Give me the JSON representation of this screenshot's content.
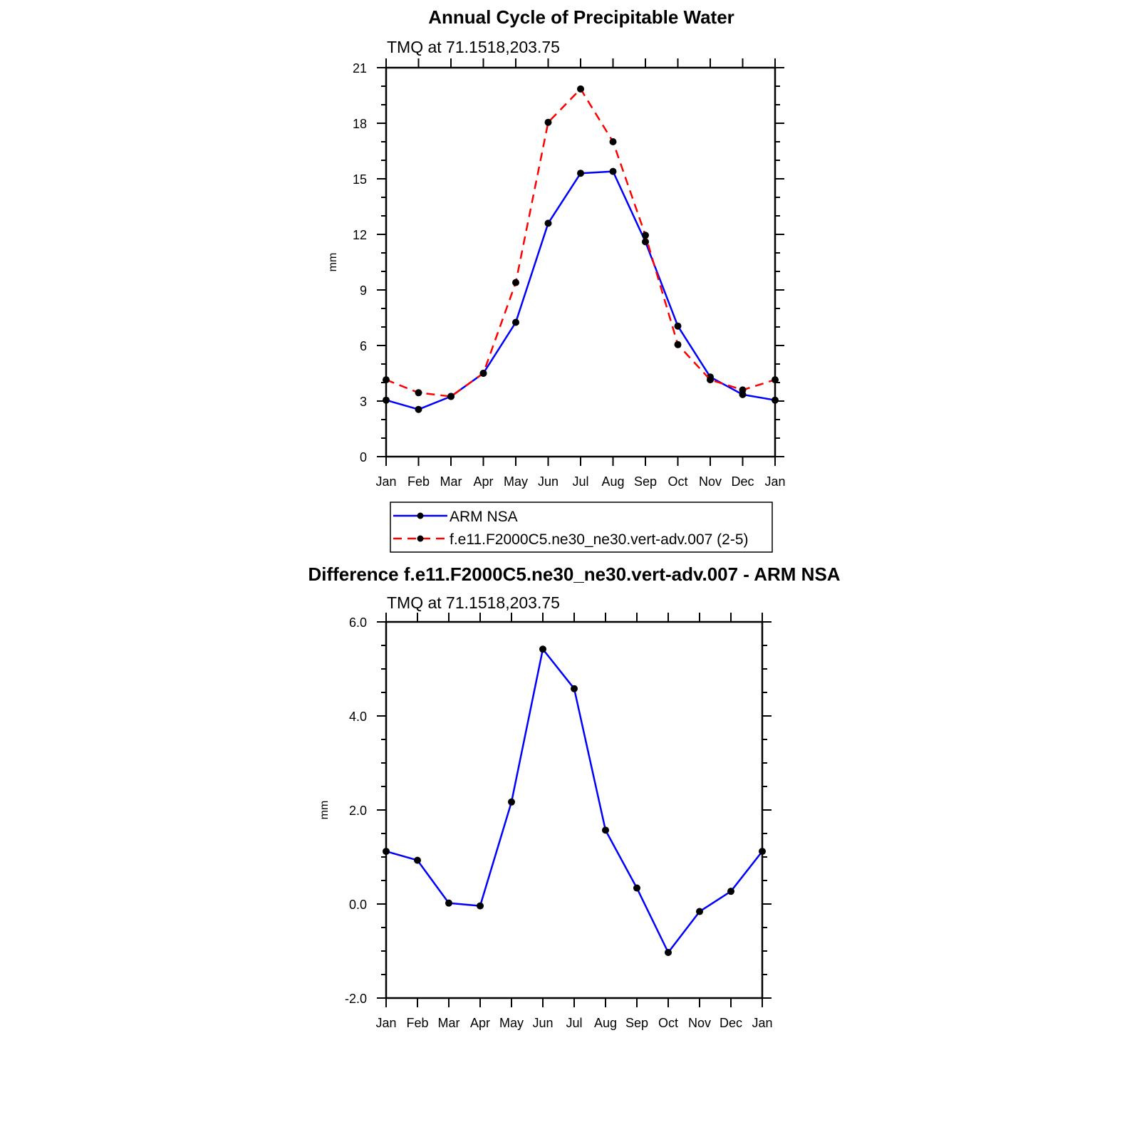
{
  "figure_title": "Annual Cycle of Precipitable Water",
  "chart_data": [
    {
      "type": "line",
      "title": "Annual Cycle of Precipitable Water",
      "subtitle": "TMQ at 71.1518,203.75",
      "xlabel": "",
      "ylabel": "mm",
      "categories": [
        "Jan",
        "Feb",
        "Mar",
        "Apr",
        "May",
        "Jun",
        "Jul",
        "Aug",
        "Sep",
        "Oct",
        "Nov",
        "Dec",
        "Jan"
      ],
      "ylim": [
        0,
        21
      ],
      "yticks": [
        "0",
        "3",
        "6",
        "9",
        "12",
        "15",
        "18",
        "21"
      ],
      "grid": false,
      "legend_position": "bottom",
      "series": [
        {
          "name": "ARM NSA",
          "color": "#0000ff",
          "dash": "solid",
          "marker": "circle",
          "values": [
            3.05,
            2.55,
            3.25,
            4.5,
            7.25,
            12.6,
            15.3,
            15.4,
            11.6,
            7.05,
            4.3,
            3.35,
            3.05
          ]
        },
        {
          "name": "f.e11.F2000C5.ne30_ne30.vert-adv.007 (2-5)",
          "color": "#ff0000",
          "dash": "dashed",
          "marker": "circle",
          "values": [
            4.15,
            3.45,
            3.25,
            4.5,
            9.4,
            18.05,
            19.85,
            17.0,
            11.95,
            6.05,
            4.15,
            3.6,
            4.15
          ]
        }
      ]
    },
    {
      "type": "line",
      "title": "Difference f.e11.F2000C5.ne30_ne30.vert-adv.007 - ARM NSA",
      "subtitle": "TMQ at 71.1518,203.75",
      "xlabel": "",
      "ylabel": "mm",
      "categories": [
        "Jan",
        "Feb",
        "Mar",
        "Apr",
        "May",
        "Jun",
        "Jul",
        "Aug",
        "Sep",
        "Oct",
        "Nov",
        "Dec",
        "Jan"
      ],
      "ylim": [
        -2,
        6
      ],
      "yticks": [
        "-2.0",
        "0.0",
        "2.0",
        "4.0",
        "6.0"
      ],
      "grid": false,
      "series": [
        {
          "color": "#0000ff",
          "dash": "solid",
          "marker": "circle",
          "values": [
            1.12,
            0.93,
            0.02,
            -0.04,
            2.17,
            5.42,
            4.58,
            1.57,
            0.34,
            -1.03,
            -0.16,
            0.27,
            1.12
          ]
        }
      ]
    }
  ]
}
